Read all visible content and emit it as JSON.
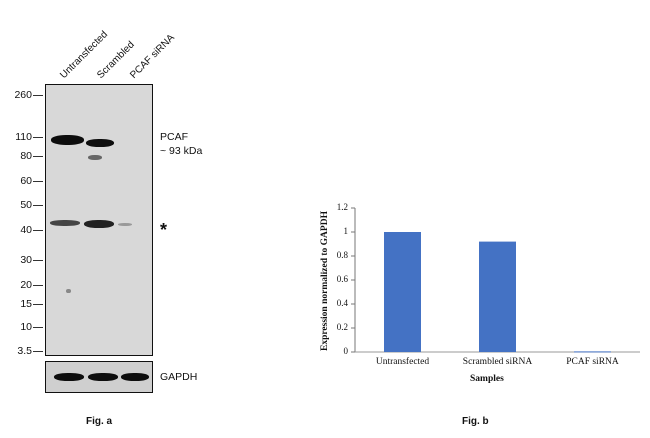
{
  "fig_a": {
    "lanes": [
      "Untransfected",
      "Scrambled",
      "PCAF siRNA"
    ],
    "mw_markers": [
      "260",
      "110",
      "80",
      "60",
      "50",
      "40",
      "30",
      "20",
      "15",
      "10",
      "3.5"
    ],
    "band_label_line1": "PCAF",
    "band_label_line2": "~ 93 kDa",
    "asterisk": "*",
    "loading_control": "GAPDH",
    "caption": "Fig. a"
  },
  "fig_b": {
    "caption": "Fig. b",
    "chart_data": {
      "type": "bar",
      "categories": [
        "Untransfected",
        "Scrambled siRNA",
        "PCAF siRNA"
      ],
      "values": [
        1.0,
        0.92,
        0.005
      ],
      "title": "",
      "xlabel": "Samples",
      "ylabel": "Expression normalized to GAPDH",
      "ylim": [
        0,
        1.2
      ],
      "yticks": [
        "0",
        "0.2",
        "0.4",
        "0.6",
        "0.8",
        "1",
        "1.2"
      ],
      "grid": false,
      "legend": "none",
      "bar_color": "#4472C4"
    }
  }
}
